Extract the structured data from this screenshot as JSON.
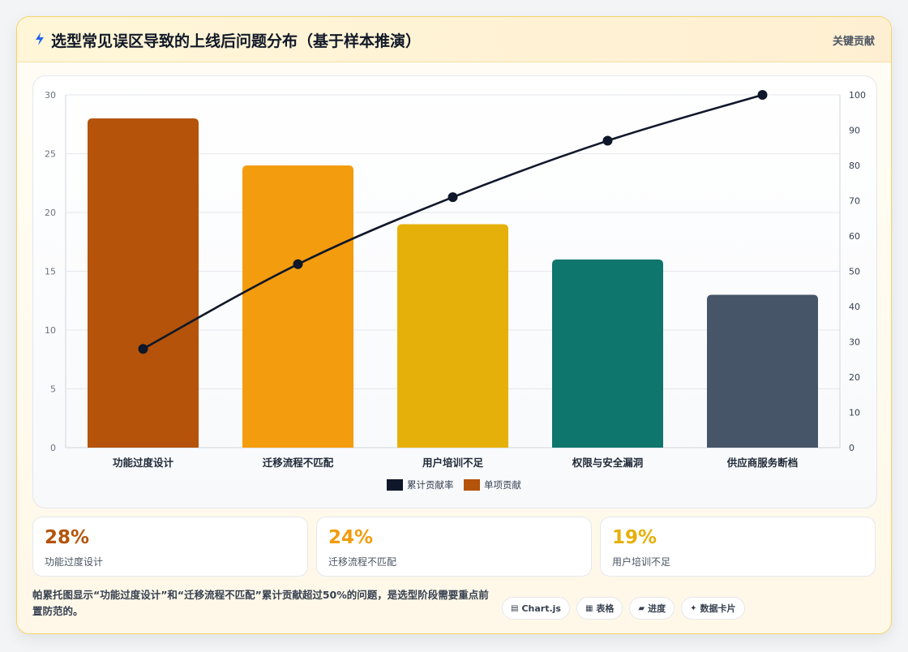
{
  "header": {
    "title_icon": "lightning-icon",
    "title": "选型常见误区导致的上线后问题分布（基于样本推演）",
    "right_label": "关键贡献"
  },
  "chart_data": {
    "type": "bar",
    "title": "",
    "categories": [
      "功能过度设计",
      "迁移流程不匹配",
      "用户培训不足",
      "权限与安全漏洞",
      "供应商服务断档"
    ],
    "series": [
      {
        "name": "单项贡献",
        "type": "bar",
        "axis": "left",
        "values": [
          28,
          24,
          19,
          16,
          13
        ],
        "colors": [
          "#b45309",
          "#f39c0e",
          "#e6b00a",
          "#0f766e",
          "#475569"
        ]
      },
      {
        "name": "累计贡献率",
        "type": "line",
        "axis": "right",
        "values": [
          28,
          52,
          71,
          87,
          100
        ],
        "color": "#0f172a"
      }
    ],
    "y_left": {
      "ylim": [
        0,
        30
      ],
      "ticks": [
        "0",
        "5",
        "10",
        "15",
        "20",
        "25",
        "30"
      ]
    },
    "y_right": {
      "ylim": [
        0,
        100
      ],
      "ticks": [
        "0",
        "10",
        "20",
        "30",
        "40",
        "50",
        "60",
        "70",
        "80",
        "90",
        "100"
      ]
    },
    "grid": true,
    "legend": {
      "placement": "bottom",
      "order": [
        "累计贡献率",
        "单项贡献"
      ]
    }
  },
  "stats": [
    {
      "value": "28%",
      "label": "功能过度设计",
      "color": "#b45309"
    },
    {
      "value": "24%",
      "label": "迁移流程不匹配",
      "color": "#f39c0e"
    },
    {
      "value": "19%",
      "label": "用户培训不足",
      "color": "#e6b00a"
    }
  ],
  "footer": {
    "note": "帕累托图显示“功能过度设计”和“迁移流程不匹配”累计贡献超过50%的问题，是选型阶段需要重点前置防范的。",
    "tags": [
      {
        "icon": "table-icon",
        "glyph": "▤",
        "label": "Chart.js"
      },
      {
        "icon": "grid-icon",
        "glyph": "▦",
        "label": "表格"
      },
      {
        "icon": "progress-icon",
        "glyph": "▰",
        "label": "进度"
      },
      {
        "icon": "sparkle-icon",
        "glyph": "✦",
        "label": "数据卡片"
      }
    ]
  }
}
